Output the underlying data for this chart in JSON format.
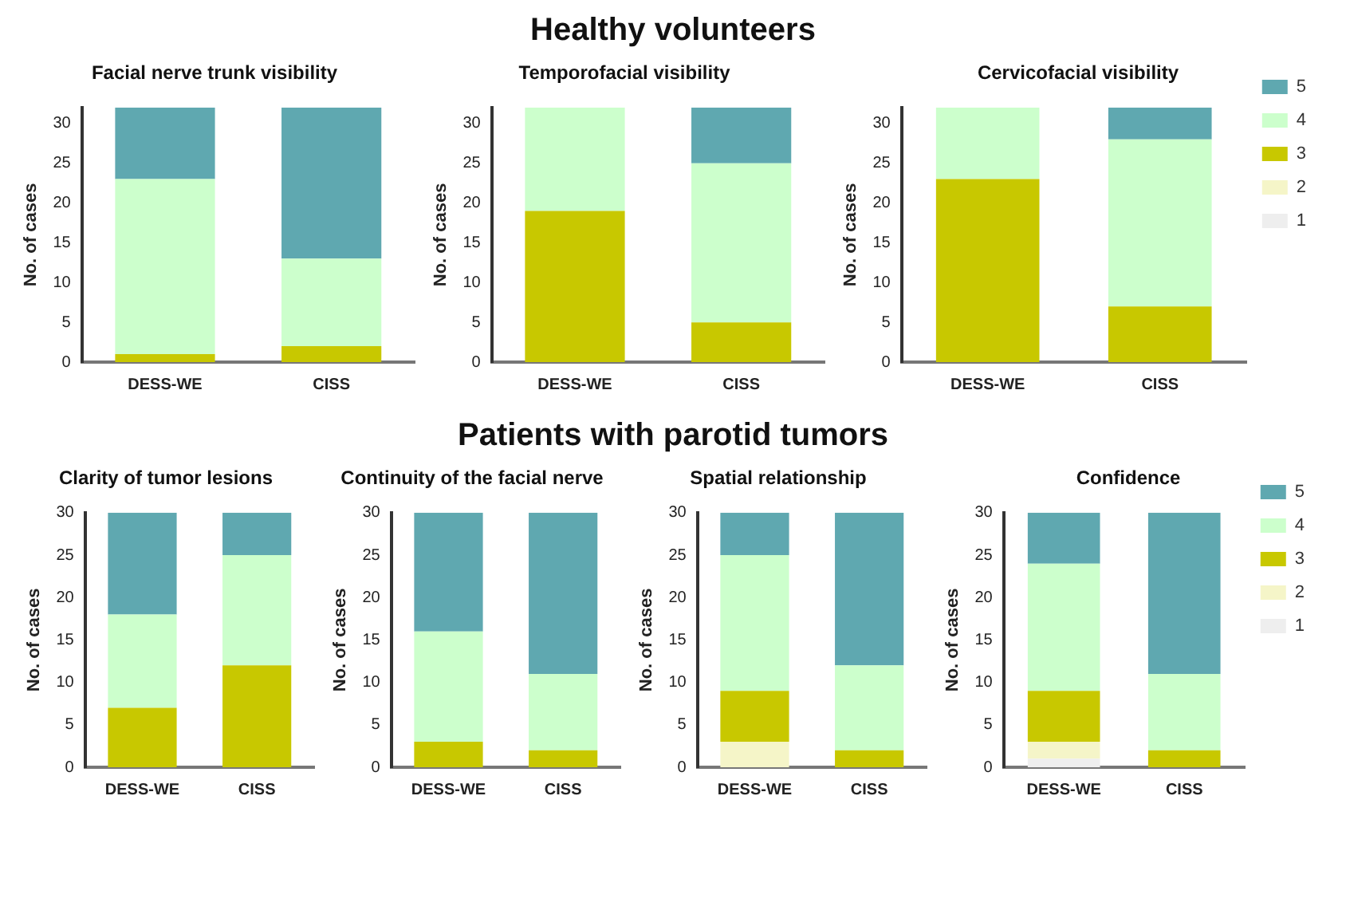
{
  "chart_data": [
    {
      "type": "bar",
      "title": "Facial nerve trunk visibility",
      "ylabel": "No. of cases",
      "annotations": [
        "Healthy volunteers"
      ],
      "categories": [
        "DESS-WE",
        "CISS"
      ],
      "stacked": true,
      "ylim": [
        0,
        32
      ],
      "yticks": [
        0,
        5,
        10,
        15,
        20,
        25,
        30
      ],
      "grid": false,
      "legend": false,
      "series": [
        {
          "color": "#ffffff",
          "values": [
            0,
            0
          ]
        },
        {
          "color": "#fdfde0",
          "values": [
            0,
            0
          ]
        },
        {
          "color": "#c8c800",
          "values": [
            1,
            2
          ]
        },
        {
          "color": "#ccffcc",
          "values": [
            22,
            11
          ]
        },
        {
          "color": "#5fa8b0",
          "values": [
            9,
            19
          ]
        }
      ]
    },
    {
      "type": "bar",
      "title": "Temporofacial visibility",
      "ylabel": "No. of cases",
      "categories": [
        "DESS-WE",
        "CISS"
      ],
      "stacked": true,
      "ylim": [
        0,
        32
      ],
      "yticks": [
        0,
        5,
        10,
        15,
        20,
        25,
        30
      ],
      "grid": false,
      "legend": false,
      "series": [
        {
          "color": "#ffffff",
          "values": [
            0,
            0
          ]
        },
        {
          "color": "#fdfde0",
          "values": [
            0,
            0
          ]
        },
        {
          "color": "#c8c800",
          "values": [
            19,
            5
          ]
        },
        {
          "color": "#ccffcc",
          "values": [
            13,
            20
          ]
        },
        {
          "color": "#5fa8b0",
          "values": [
            0,
            7
          ]
        }
      ]
    },
    {
      "type": "bar",
      "title": "Cervicofacial visibility",
      "ylabel": "No. of cases",
      "categories": [
        "DESS-WE",
        "CISS"
      ],
      "stacked": true,
      "ylim": [
        0,
        32
      ],
      "yticks": [
        0,
        5,
        10,
        15,
        20,
        25,
        30
      ],
      "grid": false,
      "legend": "right",
      "series": [
        {
          "name": "1",
          "color": "#eeeeee",
          "values": [
            0,
            0
          ]
        },
        {
          "name": "2",
          "color": "#f5f5c8",
          "values": [
            0,
            0
          ]
        },
        {
          "name": "3",
          "color": "#c8c800",
          "values": [
            23,
            7
          ]
        },
        {
          "name": "4",
          "color": "#ccffcc",
          "values": [
            9,
            21
          ]
        },
        {
          "name": "5",
          "color": "#5fa8b0",
          "values": [
            0,
            4
          ]
        }
      ]
    },
    {
      "type": "bar",
      "title": "Clarity of tumor lesions",
      "ylabel": "No. of cases",
      "annotations": [
        "Patients with parotid tumors"
      ],
      "categories": [
        "DESS-WE",
        "CISS"
      ],
      "stacked": true,
      "ylim": [
        0,
        30
      ],
      "yticks": [
        0,
        5,
        10,
        15,
        20,
        25,
        30
      ],
      "grid": false,
      "legend": false,
      "series": [
        {
          "color": "#ffffff",
          "values": [
            0,
            0
          ]
        },
        {
          "color": "#fdfde0",
          "values": [
            0,
            0
          ]
        },
        {
          "color": "#c8c800",
          "values": [
            7,
            12
          ]
        },
        {
          "color": "#ccffcc",
          "values": [
            11,
            13
          ]
        },
        {
          "color": "#5fa8b0",
          "values": [
            12,
            5
          ]
        }
      ]
    },
    {
      "type": "bar",
      "title": "Continuity of the facial nerve",
      "ylabel": "No. of cases",
      "categories": [
        "DESS-WE",
        "CISS"
      ],
      "stacked": true,
      "ylim": [
        0,
        30
      ],
      "yticks": [
        0,
        5,
        10,
        15,
        20,
        25,
        30
      ],
      "grid": false,
      "legend": false,
      "series": [
        {
          "color": "#ffffff",
          "values": [
            0,
            0
          ]
        },
        {
          "color": "#fdfde0",
          "values": [
            0,
            0
          ]
        },
        {
          "color": "#c8c800",
          "values": [
            3,
            2
          ]
        },
        {
          "color": "#ccffcc",
          "values": [
            13,
            9
          ]
        },
        {
          "color": "#5fa8b0",
          "values": [
            14,
            19
          ]
        }
      ]
    },
    {
      "type": "bar",
      "title": "Spatial relationship",
      "ylabel": "No. of cases",
      "categories": [
        "DESS-WE",
        "CISS"
      ],
      "stacked": true,
      "ylim": [
        0,
        30
      ],
      "yticks": [
        0,
        5,
        10,
        15,
        20,
        25,
        30
      ],
      "grid": false,
      "legend": false,
      "series": [
        {
          "color": "#ffffff",
          "values": [
            0,
            0
          ]
        },
        {
          "color": "#f5f5c8",
          "values": [
            3,
            0
          ]
        },
        {
          "color": "#c8c800",
          "values": [
            6,
            2
          ]
        },
        {
          "color": "#ccffcc",
          "values": [
            16,
            10
          ]
        },
        {
          "color": "#5fa8b0",
          "values": [
            5,
            18
          ]
        }
      ]
    },
    {
      "type": "bar",
      "title": "Confidence",
      "ylabel": "No. of cases",
      "categories": [
        "DESS-WE",
        "CISS"
      ],
      "stacked": true,
      "ylim": [
        0,
        30
      ],
      "yticks": [
        0,
        5,
        10,
        15,
        20,
        25,
        30
      ],
      "grid": false,
      "legend": "right",
      "series": [
        {
          "name": "1",
          "color": "#eeeeee",
          "values": [
            1,
            0
          ]
        },
        {
          "name": "2",
          "color": "#f5f5c8",
          "values": [
            2,
            0
          ]
        },
        {
          "name": "3",
          "color": "#c8c800",
          "values": [
            6,
            2
          ]
        },
        {
          "name": "4",
          "color": "#ccffcc",
          "values": [
            15,
            9
          ]
        },
        {
          "name": "5",
          "color": "#5fa8b0",
          "values": [
            6,
            19
          ]
        }
      ]
    }
  ]
}
